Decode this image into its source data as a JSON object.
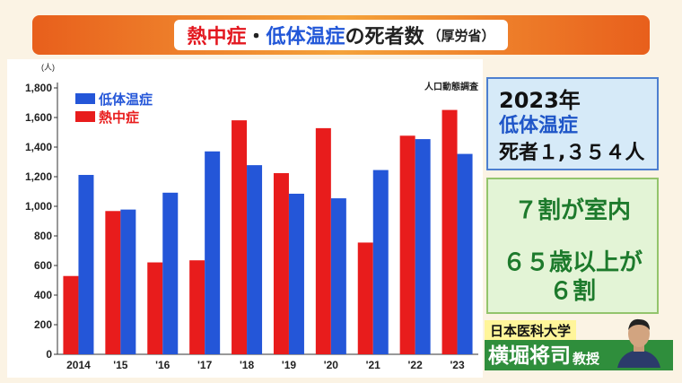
{
  "title": {
    "heat": "熱中症",
    "dot": "・",
    "hypo": "低体温症",
    "rest": "の死者数",
    "source": "（厚労省）"
  },
  "chart_data": {
    "type": "bar",
    "categories": [
      "2014",
      "'15",
      "'16",
      "'17",
      "'18",
      "'19",
      "'20",
      "'21",
      "'22",
      "'23"
    ],
    "series": [
      {
        "name": "熱中症",
        "color": "#e81c1c",
        "values": [
          529,
          968,
          621,
          635,
          1581,
          1224,
          1528,
          755,
          1477,
          1651
        ]
      },
      {
        "name": "低体温症",
        "color": "#2456d8",
        "values": [
          1212,
          978,
          1092,
          1371,
          1278,
          1085,
          1054,
          1245,
          1454,
          1354
        ]
      }
    ],
    "unit_label": "(人)",
    "source_note": "人口動態調査",
    "legend": [
      "低体温症",
      "熱中症"
    ],
    "ylim": [
      0,
      1800
    ],
    "yticks": [
      "0",
      "200",
      "400",
      "600",
      "800",
      "1,000",
      "1,200",
      "1,400",
      "1,600",
      "1,800"
    ]
  },
  "highlight": {
    "year": "2023年",
    "label": "低体温症",
    "deaths": "死者１,３５４人"
  },
  "facts": {
    "line1": "７割が室内",
    "line2": "６５歳以上が",
    "line3": "６割"
  },
  "expert": {
    "affiliation": "日本医科大学",
    "name": "横堀将司",
    "title": "教授"
  }
}
